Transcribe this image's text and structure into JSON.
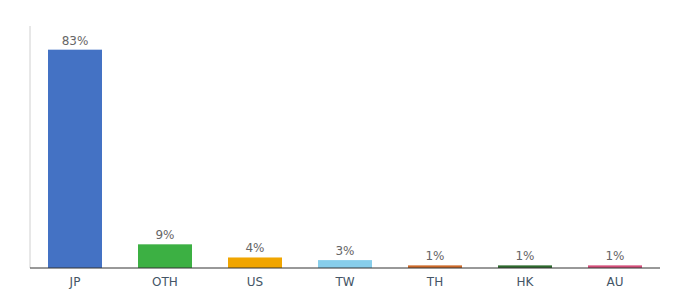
{
  "chart_data": {
    "type": "bar",
    "categories": [
      "JP",
      "OTH",
      "US",
      "TW",
      "TH",
      "HK",
      "AU"
    ],
    "values": [
      83,
      9,
      4,
      3,
      1,
      1,
      1
    ],
    "value_labels": [
      "83%",
      "9%",
      "4%",
      "3%",
      "1%",
      "1%",
      "1%"
    ],
    "colors": [
      "#4472c4",
      "#3cb043",
      "#f0a500",
      "#87ceeb",
      "#cd6a2a",
      "#2e6b2e",
      "#d44f7a"
    ],
    "ylim": [
      0,
      92
    ],
    "grid": false,
    "data_labels": true,
    "tick_labels": "x"
  }
}
